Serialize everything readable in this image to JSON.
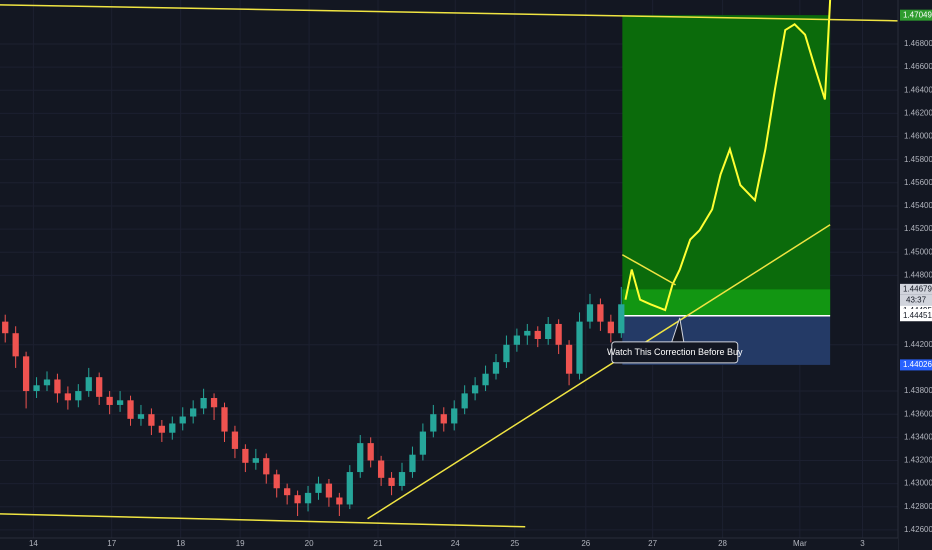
{
  "chart_data": {
    "type": "candlestick",
    "xlim": [
      0,
      86
    ],
    "ylim": [
      1.4253,
      1.4718
    ],
    "xticks": [
      {
        "value": 3.2,
        "label": "14"
      },
      {
        "value": 10.7,
        "label": "17"
      },
      {
        "value": 17.3,
        "label": "18"
      },
      {
        "value": 23,
        "label": "19"
      },
      {
        "value": 29.6,
        "label": "20"
      },
      {
        "value": 36.2,
        "label": "21"
      },
      {
        "value": 43.6,
        "label": "24"
      },
      {
        "value": 49.3,
        "label": "25"
      },
      {
        "value": 56.1,
        "label": "26"
      },
      {
        "value": 62.5,
        "label": "27"
      },
      {
        "value": 69.2,
        "label": "28"
      },
      {
        "value": 76.6,
        "label": "Mar"
      },
      {
        "value": 82.6,
        "label": "3"
      }
    ],
    "yticks": [
      {
        "value": 1.468,
        "label": "1.46800"
      },
      {
        "value": 1.466,
        "label": "1.46600"
      },
      {
        "value": 1.464,
        "label": "1.46400"
      },
      {
        "value": 1.462,
        "label": "1.46200"
      },
      {
        "value": 1.46,
        "label": "1.46000"
      },
      {
        "value": 1.458,
        "label": "1.45800"
      },
      {
        "value": 1.456,
        "label": "1.45600"
      },
      {
        "value": 1.454,
        "label": "1.45400"
      },
      {
        "value": 1.452,
        "label": "1.45200"
      },
      {
        "value": 1.45,
        "label": "1.45000"
      },
      {
        "value": 1.448,
        "label": "1.44800"
      },
      {
        "value": 1.442,
        "label": "1.44200"
      },
      {
        "value": 1.438,
        "label": "1.43800"
      },
      {
        "value": 1.436,
        "label": "1.43600"
      },
      {
        "value": 1.434,
        "label": "1.43400"
      },
      {
        "value": 1.432,
        "label": "1.43200"
      },
      {
        "value": 1.43,
        "label": "1.43000"
      },
      {
        "value": 1.428,
        "label": "1.42800"
      },
      {
        "value": 1.426,
        "label": "1.42600"
      }
    ],
    "up_color": "#26a69a",
    "down_color": "#ef5350",
    "open": [
      1.444,
      1.443,
      1.441,
      1.438,
      1.4385,
      1.439,
      1.4378,
      1.4372,
      1.438,
      1.4392,
      1.4375,
      1.4368,
      1.4372,
      1.4356,
      1.436,
      1.435,
      1.4344,
      1.4352,
      1.4358,
      1.4365,
      1.4374,
      1.4366,
      1.4345,
      1.433,
      1.4318,
      1.4322,
      1.4308,
      1.4296,
      1.429,
      1.4283,
      1.4292,
      1.43,
      1.4288,
      1.4282,
      1.431,
      1.4335,
      1.432,
      1.4305,
      1.4298,
      1.431,
      1.4325,
      1.4345,
      1.436,
      1.4352,
      1.4365,
      1.4378,
      1.4385,
      1.4395,
      1.4405,
      1.442,
      1.4428,
      1.4432,
      1.4425,
      1.4438,
      1.442,
      1.4395,
      1.444,
      1.4455,
      1.444,
      1.443
    ],
    "high": [
      1.4446,
      1.4436,
      1.4414,
      1.4392,
      1.4397,
      1.4395,
      1.4384,
      1.4386,
      1.44,
      1.4396,
      1.438,
      1.438,
      1.4376,
      1.4368,
      1.4365,
      1.4355,
      1.4358,
      1.4366,
      1.4372,
      1.4382,
      1.4378,
      1.437,
      1.435,
      1.4334,
      1.433,
      1.4326,
      1.4312,
      1.43,
      1.4294,
      1.4298,
      1.4306,
      1.4304,
      1.4292,
      1.4316,
      1.4342,
      1.434,
      1.4324,
      1.431,
      1.4318,
      1.4332,
      1.4352,
      1.4368,
      1.4366,
      1.4372,
      1.4385,
      1.4392,
      1.4402,
      1.4412,
      1.4428,
      1.4434,
      1.4438,
      1.4436,
      1.4444,
      1.4442,
      1.4424,
      1.4448,
      1.4464,
      1.446,
      1.4446,
      1.447
    ],
    "low": [
      1.4422,
      1.44,
      1.4365,
      1.4374,
      1.438,
      1.437,
      1.4364,
      1.4366,
      1.4375,
      1.4368,
      1.436,
      1.4362,
      1.435,
      1.435,
      1.4342,
      1.4336,
      1.4338,
      1.4346,
      1.4352,
      1.436,
      1.4355,
      1.4336,
      1.4322,
      1.431,
      1.4312,
      1.43,
      1.4288,
      1.4282,
      1.4272,
      1.4276,
      1.4286,
      1.428,
      1.4272,
      1.4278,
      1.4305,
      1.4314,
      1.4298,
      1.429,
      1.4294,
      1.4305,
      1.432,
      1.434,
      1.4345,
      1.4346,
      1.436,
      1.4372,
      1.438,
      1.439,
      1.44,
      1.4414,
      1.442,
      1.4418,
      1.442,
      1.4412,
      1.4385,
      1.439,
      1.4434,
      1.4432,
      1.4422,
      1.4426
    ],
    "close": [
      1.443,
      1.441,
      1.438,
      1.4385,
      1.439,
      1.4378,
      1.4372,
      1.438,
      1.4392,
      1.4375,
      1.4368,
      1.4372,
      1.4356,
      1.436,
      1.435,
      1.4344,
      1.4352,
      1.4358,
      1.4365,
      1.4374,
      1.4366,
      1.4345,
      1.433,
      1.4318,
      1.4322,
      1.4308,
      1.4296,
      1.429,
      1.4283,
      1.4292,
      1.43,
      1.4288,
      1.4282,
      1.431,
      1.4335,
      1.432,
      1.4305,
      1.4298,
      1.431,
      1.4325,
      1.4345,
      1.436,
      1.4352,
      1.4365,
      1.4378,
      1.4385,
      1.4395,
      1.4405,
      1.442,
      1.4428,
      1.4432,
      1.4425,
      1.4438,
      1.442,
      1.4395,
      1.444,
      1.4455,
      1.444,
      1.443,
      1.4455
    ],
    "projection": {
      "color": "#ffff33",
      "x": [
        59.9,
        60.5,
        61.3,
        62.3,
        63.7,
        64.4,
        65.1,
        66.1,
        67,
        68.2,
        69,
        69.9,
        70.9,
        72.3,
        73.3,
        74.2,
        75.2,
        76.1,
        77.1,
        78.1,
        79,
        79.5
      ],
      "values": [
        1.4459,
        1.4485,
        1.4459,
        1.4455,
        1.445,
        1.4472,
        1.4485,
        1.4511,
        1.4519,
        1.4537,
        1.4567,
        1.4589,
        1.4558,
        1.4545,
        1.4589,
        1.464,
        1.4692,
        1.4697,
        1.4688,
        1.4658,
        1.4632,
        1.4718
      ]
    },
    "trendlines": [
      {
        "x": [
          0,
          86
        ],
        "values": [
          1.47138,
          1.47
        ]
      },
      {
        "x": [
          0,
          50.3
        ],
        "values": [
          1.42739,
          1.42627
        ]
      },
      {
        "x": [
          35.2,
          79.5
        ],
        "values": [
          1.42696,
          1.45237
        ]
      },
      {
        "x": [
          59.6,
          64.7
        ],
        "values": [
          1.44978,
          1.44718
        ]
      }
    ],
    "trendline_color": "#f0e442",
    "position": {
      "x": [
        59.6,
        79.5
      ],
      "target": 1.47049,
      "entry": 1.44451,
      "stop": 1.44026,
      "band": 1.44679
    },
    "price_tags": [
      {
        "value": 1.47049,
        "color": "#2e9c2e",
        "text_color": "#ffffff"
      },
      {
        "value": 1.44679,
        "color": "#d1d4dc",
        "text_color": "#131722"
      },
      {
        "value": 1.44495,
        "color": "#ffffff",
        "text_color": "#131722"
      },
      {
        "value": 1.44462,
        "color": "#ffffff",
        "text_color": "#131722"
      },
      {
        "value": 1.44451,
        "color": "#ffffff",
        "text_color": "#131722"
      },
      {
        "value": 1.44026,
        "color": "#2962ff",
        "text_color": "#ffffff"
      }
    ],
    "countdown": "43:37",
    "annotation": {
      "text": "Watch This Correction Before Buy",
      "x": 65.1,
      "price": 1.4445
    }
  }
}
